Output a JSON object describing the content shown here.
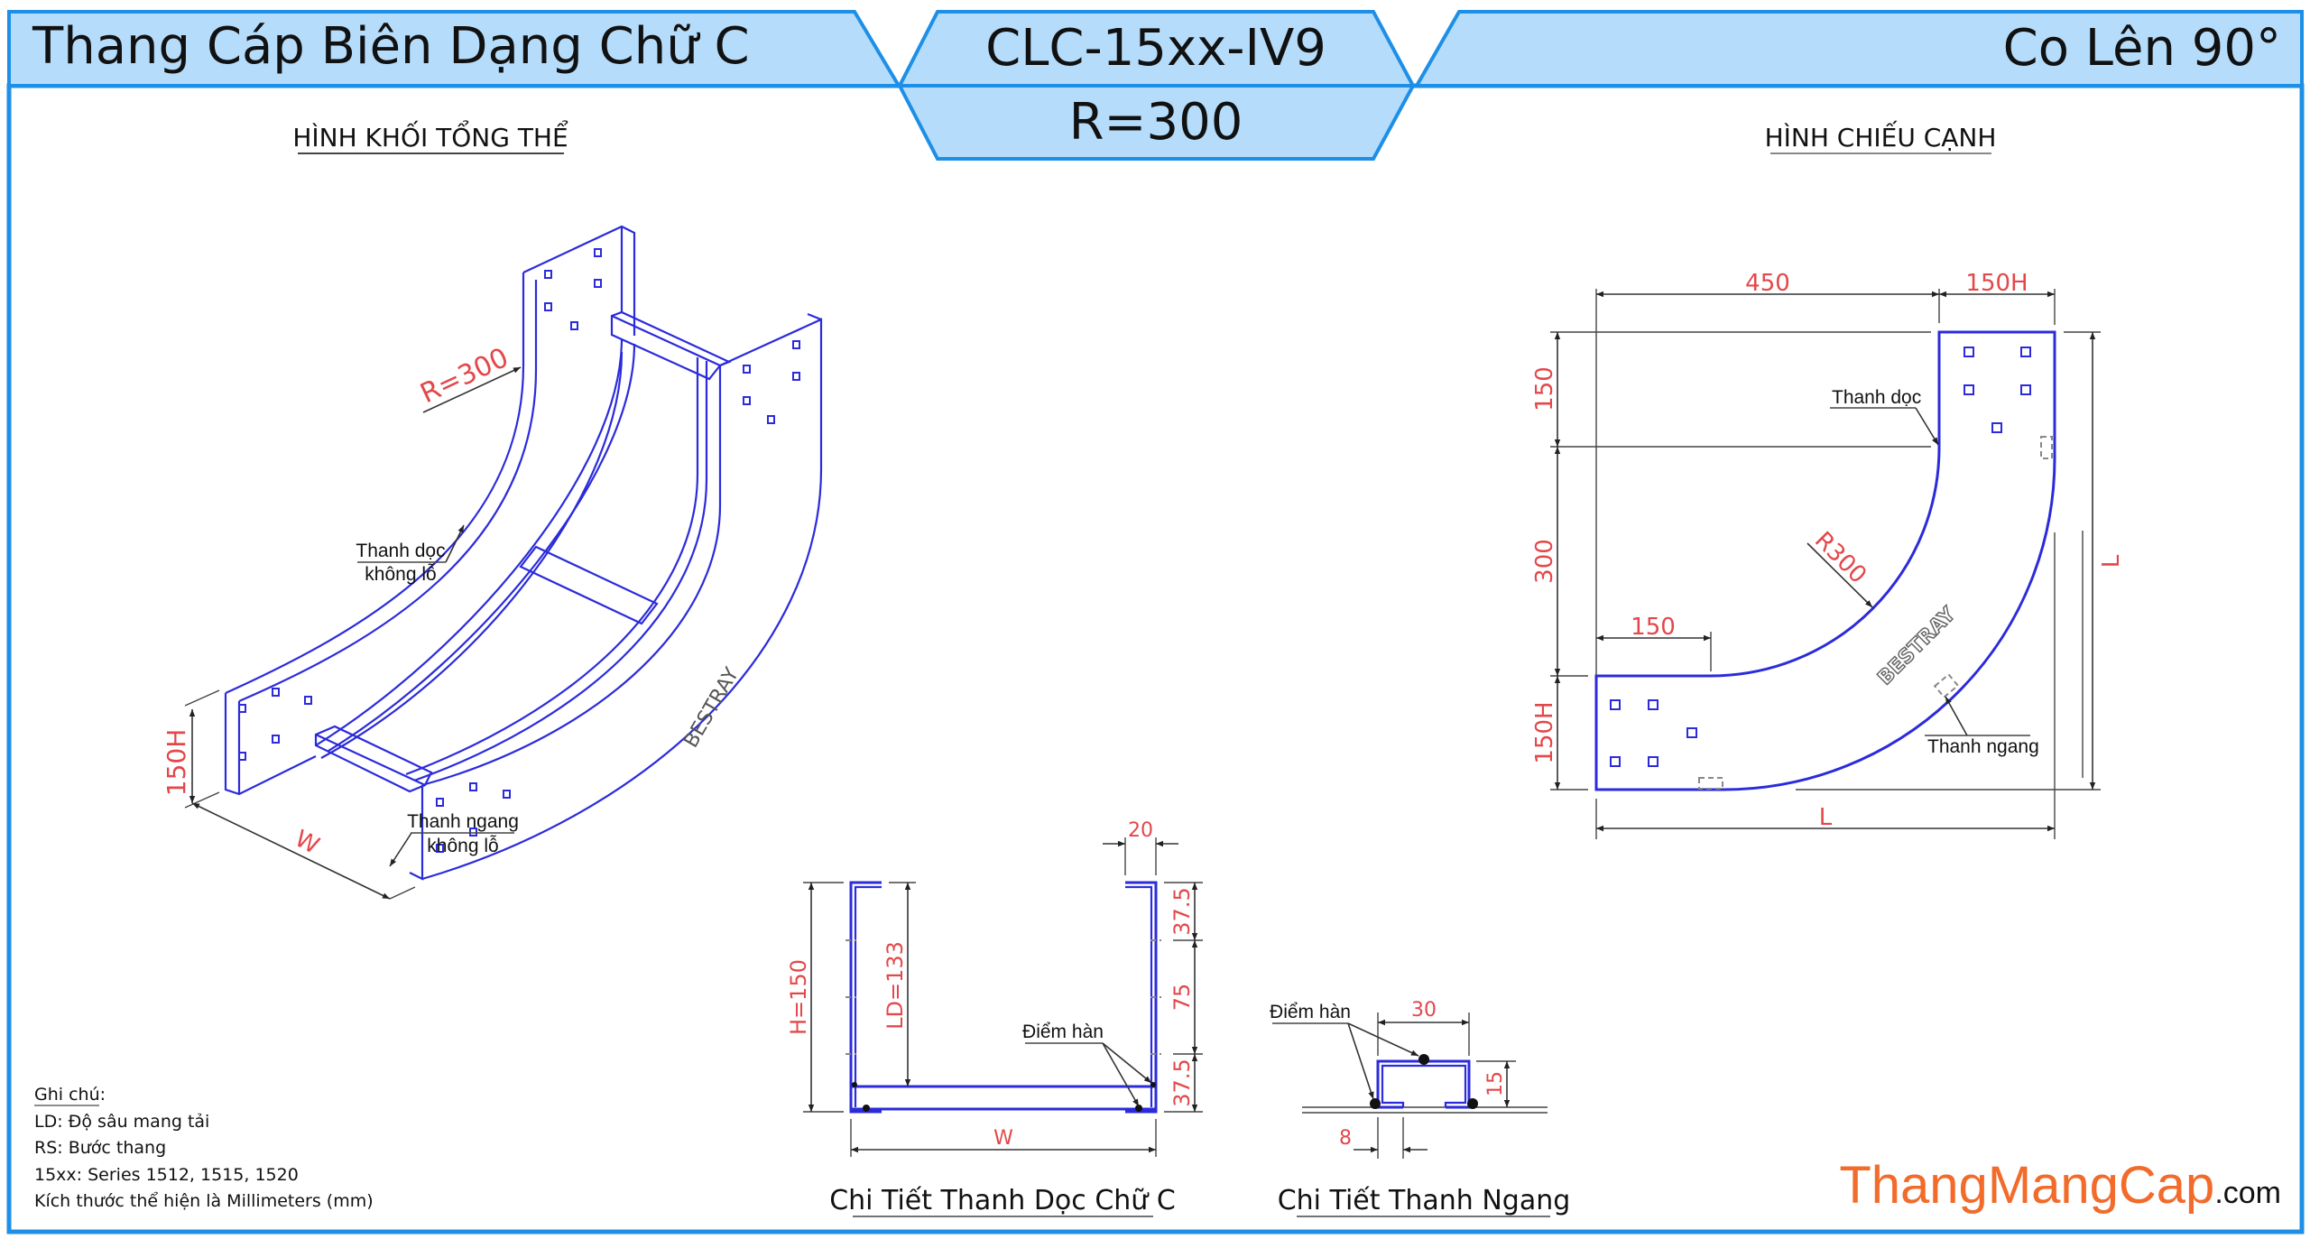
{
  "header": {
    "left_title": "Thang Cáp Biên Dạng Chữ C",
    "model_code": "CLC-15xx-IV9",
    "radius": "R=300",
    "right_title": "Co Lên 90°"
  },
  "sections": {
    "isometric_title": "HÌNH KHỐI TỔNG THỂ",
    "side_view_title": "HÌNH CHIẾU CẠNH",
    "c_channel_title": "Chi Tiết Thanh Dọc Chữ C",
    "rung_title": "Chi Tiết Thanh Ngang"
  },
  "isometric": {
    "radius_label": "R=300",
    "rail_label_1": "Thanh dọc",
    "rail_label_2": "không lỗ",
    "rung_label_1": "Thanh ngang",
    "rung_label_2": "không lỗ",
    "height_label": "150H",
    "width_label": "W",
    "brand": "BESTRAY"
  },
  "side_view": {
    "dim_top_left": "450",
    "dim_top_right": "150H",
    "dim_left_top": "150",
    "dim_left_mid": "300",
    "dim_left_bottom": "150H",
    "dim_inner": "150",
    "dim_right": "L",
    "dim_bottom": "L",
    "radius_label": "R300",
    "rail_label": "Thanh dọc",
    "rung_label": "Thanh ngang",
    "brand": "BESTRAY"
  },
  "c_channel": {
    "height": "H=150",
    "load_depth": "LD=133",
    "lip": "20",
    "seg_top": "37.5",
    "seg_mid": "75",
    "seg_bottom": "37.5",
    "width": "W",
    "weld_label": "Điểm hàn"
  },
  "rung": {
    "width": "30",
    "height": "15",
    "lip": "8",
    "weld_label": "Điểm hàn"
  },
  "notes": {
    "heading": "Ghi chú:",
    "lines": [
      "LD: Độ sâu mang tải",
      "RS: Bước thang",
      "15xx: Series 1512, 1515, 1520",
      "Kích thước thể hiện là Millimeters (mm)"
    ]
  },
  "logo": {
    "main": "ThangMangCap",
    "suffix": ".com"
  },
  "colors": {
    "frame": "#1e8fe6",
    "header_fill": "#b5ddfb",
    "drawing": "#2b2bdc",
    "dimension_text": "#e3474a",
    "logo": "#f26b2a"
  }
}
